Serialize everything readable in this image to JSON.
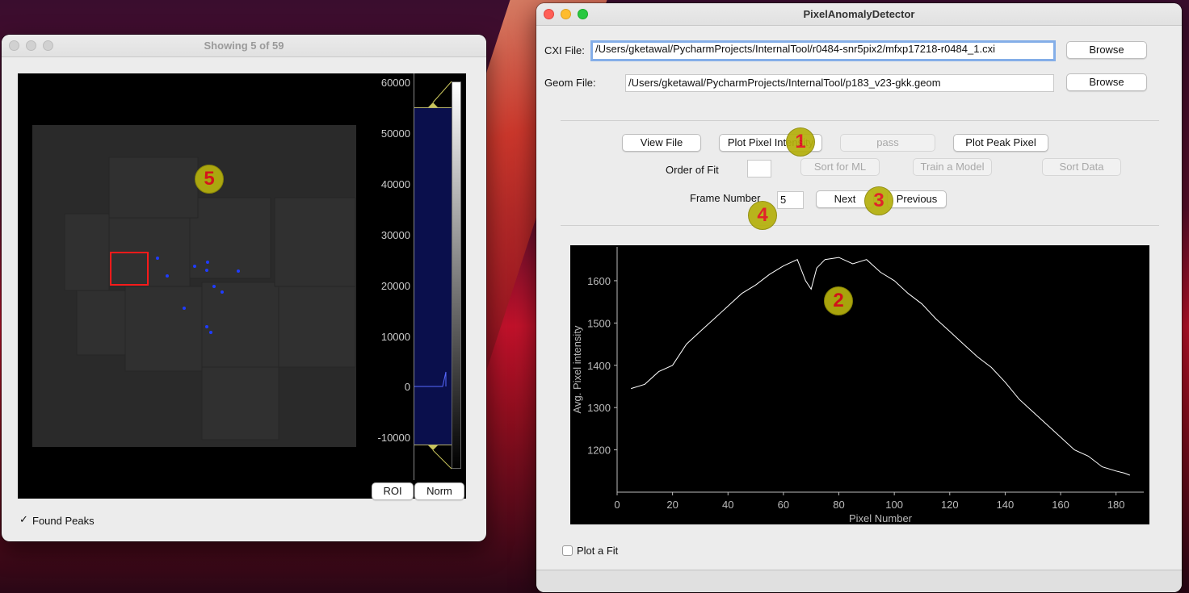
{
  "left_window": {
    "title": "Showing 5 of 59",
    "axis_ticks": [
      "60000",
      "50000",
      "40000",
      "30000",
      "20000",
      "10000",
      "0",
      "-10000"
    ],
    "roi_button": "ROI",
    "norm_button": "Norm",
    "found_peaks_label": "Found Peaks",
    "found_peaks_checked": "✓",
    "badge": "5"
  },
  "main_window": {
    "title": "PixelAnomalyDetector",
    "cxi_label": "CXI File:",
    "cxi_value": "/Users/gketawal/PycharmProjects/InternalTool/r0484-snr5pix2/mfxp17218-r0484_1.cxi",
    "geom_label": "Geom File:",
    "geom_value": "/Users/gketawal/PycharmProjects/InternalTool/p183_v23-gkk.geom",
    "browse_label": "Browse",
    "view_file": "View File",
    "plot_pixel_intensity": "Plot Pixel Intensity",
    "pass": "pass",
    "plot_peak_pixel": "Plot Peak Pixel",
    "order_of_fit_label": "Order of Fit",
    "sort_for_ml": "Sort for ML",
    "train_a_model": "Train a Model",
    "sort_data": "Sort Data",
    "frame_number_label": "Frame Number",
    "frame_number_value": "5",
    "next": "Next",
    "previous": "Previous",
    "plot_a_fit_label": "Plot a Fit",
    "badges": [
      "1",
      "2",
      "3",
      "4"
    ]
  },
  "chart_data": {
    "type": "line",
    "xlabel": "Pixel Number",
    "ylabel": "Avg. Pixel intensity",
    "xlim": [
      0,
      190
    ],
    "ylim": [
      1100,
      1680
    ],
    "xticks": [
      "0",
      "20",
      "40",
      "60",
      "80",
      "100",
      "120",
      "140",
      "160",
      "180"
    ],
    "yticks": [
      "1200",
      "1300",
      "1400",
      "1500",
      "1600"
    ],
    "grid": false,
    "x": [
      5,
      10,
      15,
      20,
      25,
      30,
      35,
      40,
      45,
      50,
      55,
      60,
      65,
      68,
      70,
      72,
      75,
      80,
      85,
      90,
      95,
      100,
      105,
      110,
      115,
      120,
      125,
      130,
      135,
      140,
      145,
      150,
      155,
      160,
      165,
      170,
      175,
      180,
      183,
      185
    ],
    "y": [
      1345,
      1355,
      1385,
      1400,
      1450,
      1480,
      1510,
      1540,
      1570,
      1590,
      1615,
      1635,
      1650,
      1600,
      1580,
      1630,
      1650,
      1655,
      1640,
      1650,
      1620,
      1600,
      1570,
      1545,
      1510,
      1480,
      1450,
      1420,
      1395,
      1360,
      1320,
      1290,
      1260,
      1230,
      1200,
      1185,
      1160,
      1150,
      1145,
      1140
    ]
  }
}
